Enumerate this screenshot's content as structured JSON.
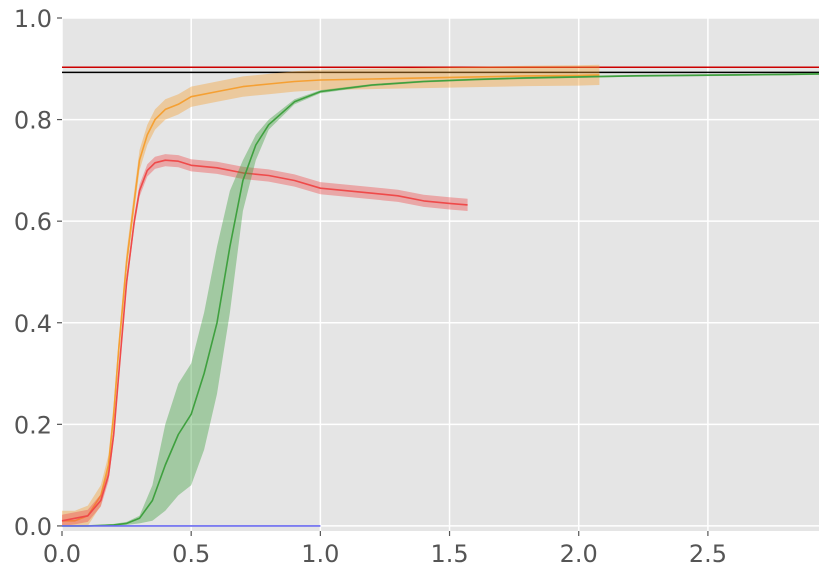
{
  "chart_data": {
    "type": "line",
    "title": "",
    "xlabel": "",
    "ylabel": "",
    "xlim": [
      0,
      2.93
    ],
    "ylim": [
      -0.01,
      1.0
    ],
    "grid": true,
    "x_ticks": [
      {
        "value": 0.0,
        "label": "0.0"
      },
      {
        "value": 0.5,
        "label": "0.5"
      },
      {
        "value": 1.0,
        "label": "1.0"
      },
      {
        "value": 1.5,
        "label": "1.5"
      },
      {
        "value": 2.0,
        "label": "2.0"
      },
      {
        "value": 2.5,
        "label": "2.5"
      }
    ],
    "y_ticks": [
      {
        "value": 0.0,
        "label": "0.0"
      },
      {
        "value": 0.2,
        "label": "0.2"
      },
      {
        "value": 0.4,
        "label": "0.4"
      },
      {
        "value": 0.6,
        "label": "0.6"
      },
      {
        "value": 0.8,
        "label": "0.8"
      },
      {
        "value": 1.0,
        "label": "1.0"
      }
    ],
    "hlines": [
      {
        "y": 0.903,
        "color": "#cc0000"
      },
      {
        "y": 0.893,
        "color": "#000000"
      }
    ],
    "series": [
      {
        "color": "#f5a033",
        "x": [
          0.0,
          0.05,
          0.1,
          0.15,
          0.18,
          0.2,
          0.22,
          0.25,
          0.28,
          0.3,
          0.33,
          0.36,
          0.4,
          0.45,
          0.5,
          0.6,
          0.7,
          0.8,
          0.9,
          1.0,
          1.2,
          1.4,
          1.6,
          1.8,
          2.0,
          2.08
        ],
        "y": [
          0.01,
          0.01,
          0.02,
          0.06,
          0.12,
          0.22,
          0.35,
          0.52,
          0.64,
          0.72,
          0.77,
          0.8,
          0.82,
          0.83,
          0.845,
          0.855,
          0.865,
          0.87,
          0.875,
          0.878,
          0.88,
          0.882,
          0.884,
          0.886,
          0.887,
          0.888
        ],
        "band": 0.02
      },
      {
        "color": "#ef4a4a",
        "x": [
          0.0,
          0.05,
          0.1,
          0.15,
          0.18,
          0.2,
          0.22,
          0.25,
          0.28,
          0.3,
          0.33,
          0.36,
          0.4,
          0.45,
          0.5,
          0.6,
          0.7,
          0.8,
          0.9,
          1.0,
          1.1,
          1.2,
          1.3,
          1.4,
          1.5,
          1.57
        ],
        "y": [
          0.01,
          0.015,
          0.02,
          0.05,
          0.1,
          0.18,
          0.3,
          0.48,
          0.6,
          0.66,
          0.7,
          0.715,
          0.72,
          0.718,
          0.71,
          0.705,
          0.695,
          0.69,
          0.68,
          0.665,
          0.66,
          0.655,
          0.65,
          0.64,
          0.635,
          0.632
        ],
        "band": 0.012
      },
      {
        "color": "#3fa03f",
        "x": [
          0.0,
          0.1,
          0.2,
          0.25,
          0.3,
          0.35,
          0.4,
          0.45,
          0.5,
          0.55,
          0.6,
          0.65,
          0.7,
          0.75,
          0.8,
          0.9,
          1.0,
          1.2,
          1.4,
          1.6,
          1.8,
          2.0,
          2.2,
          2.4,
          2.6,
          2.8,
          2.93
        ],
        "y": [
          0.0,
          0.0,
          0.002,
          0.005,
          0.015,
          0.05,
          0.12,
          0.18,
          0.22,
          0.3,
          0.4,
          0.55,
          0.68,
          0.75,
          0.79,
          0.835,
          0.855,
          0.868,
          0.875,
          0.879,
          0.882,
          0.884,
          0.886,
          0.887,
          0.888,
          0.889,
          0.89
        ],
        "band_upper": [
          0.0,
          0.0,
          0.004,
          0.008,
          0.02,
          0.08,
          0.2,
          0.28,
          0.32,
          0.42,
          0.55,
          0.66,
          0.72,
          0.77,
          0.8,
          0.84,
          0.858,
          0.87,
          0.877,
          0.881,
          0.884,
          0.886,
          0.888,
          0.889,
          0.89,
          0.891,
          0.892
        ],
        "band_lower": [
          0.0,
          0.0,
          0.0,
          0.002,
          0.005,
          0.01,
          0.03,
          0.06,
          0.08,
          0.15,
          0.26,
          0.42,
          0.62,
          0.72,
          0.78,
          0.83,
          0.852,
          0.866,
          0.873,
          0.877,
          0.88,
          0.882,
          0.884,
          0.885,
          0.886,
          0.887,
          0.888
        ]
      },
      {
        "color": "#6a6af0",
        "x": [
          0.0,
          1.0
        ],
        "y": [
          0.0,
          0.0
        ]
      }
    ]
  }
}
